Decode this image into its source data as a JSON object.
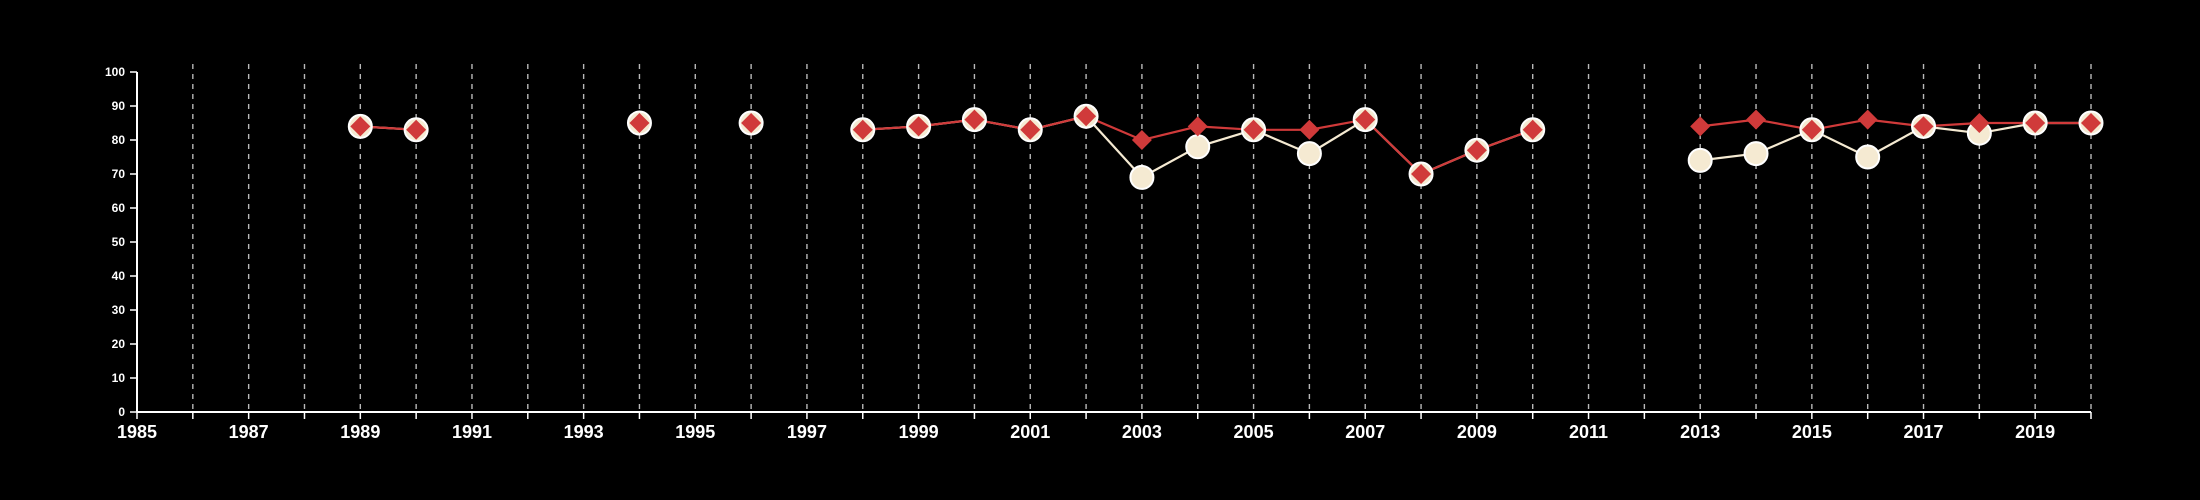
{
  "chart_data": {
    "type": "line",
    "title": "",
    "xlabel": "",
    "ylabel": "",
    "xlim": [
      1985,
      2020
    ],
    "ylim": [
      0,
      100
    ],
    "x_tick_labels": [
      "1985",
      "1987",
      "1989",
      "1991",
      "1993",
      "1995",
      "1997",
      "1999",
      "2001",
      "2003",
      "2005",
      "2007",
      "2009",
      "2011",
      "2013",
      "2015",
      "2017",
      "2019"
    ],
    "y_tick_labels": [
      "0",
      "10",
      "20",
      "30",
      "40",
      "50",
      "60",
      "70",
      "80",
      "90",
      "100"
    ],
    "vertical_gridlines": "dashed, every year",
    "horizontal_gridlines": false,
    "legend": "none",
    "x": [
      1985,
      1986,
      1987,
      1988,
      1989,
      1990,
      1991,
      1992,
      1993,
      1994,
      1995,
      1996,
      1997,
      1998,
      1999,
      2000,
      2001,
      2002,
      2003,
      2004,
      2005,
      2006,
      2007,
      2008,
      2009,
      2010,
      2011,
      2012,
      2013,
      2014,
      2015,
      2016,
      2017,
      2018,
      2019,
      2020
    ],
    "series": [
      {
        "color": "#f5ead2",
        "marker": "circle",
        "values": [
          null,
          null,
          null,
          null,
          84,
          83,
          null,
          null,
          null,
          85,
          null,
          85,
          null,
          83,
          84,
          86,
          83,
          87,
          69,
          78,
          83,
          76,
          86,
          70,
          77,
          83,
          null,
          null,
          74,
          76,
          83,
          75,
          84,
          82,
          85,
          85
        ]
      },
      {
        "color": "#d03a3a",
        "marker": "diamond",
        "values": [
          null,
          null,
          null,
          null,
          84,
          83,
          null,
          null,
          null,
          85,
          null,
          85,
          null,
          83,
          84,
          86,
          83,
          87,
          80,
          84,
          83,
          83,
          86,
          70,
          77,
          83,
          null,
          null,
          84,
          86,
          83,
          86,
          84,
          85,
          85,
          85
        ]
      }
    ]
  }
}
